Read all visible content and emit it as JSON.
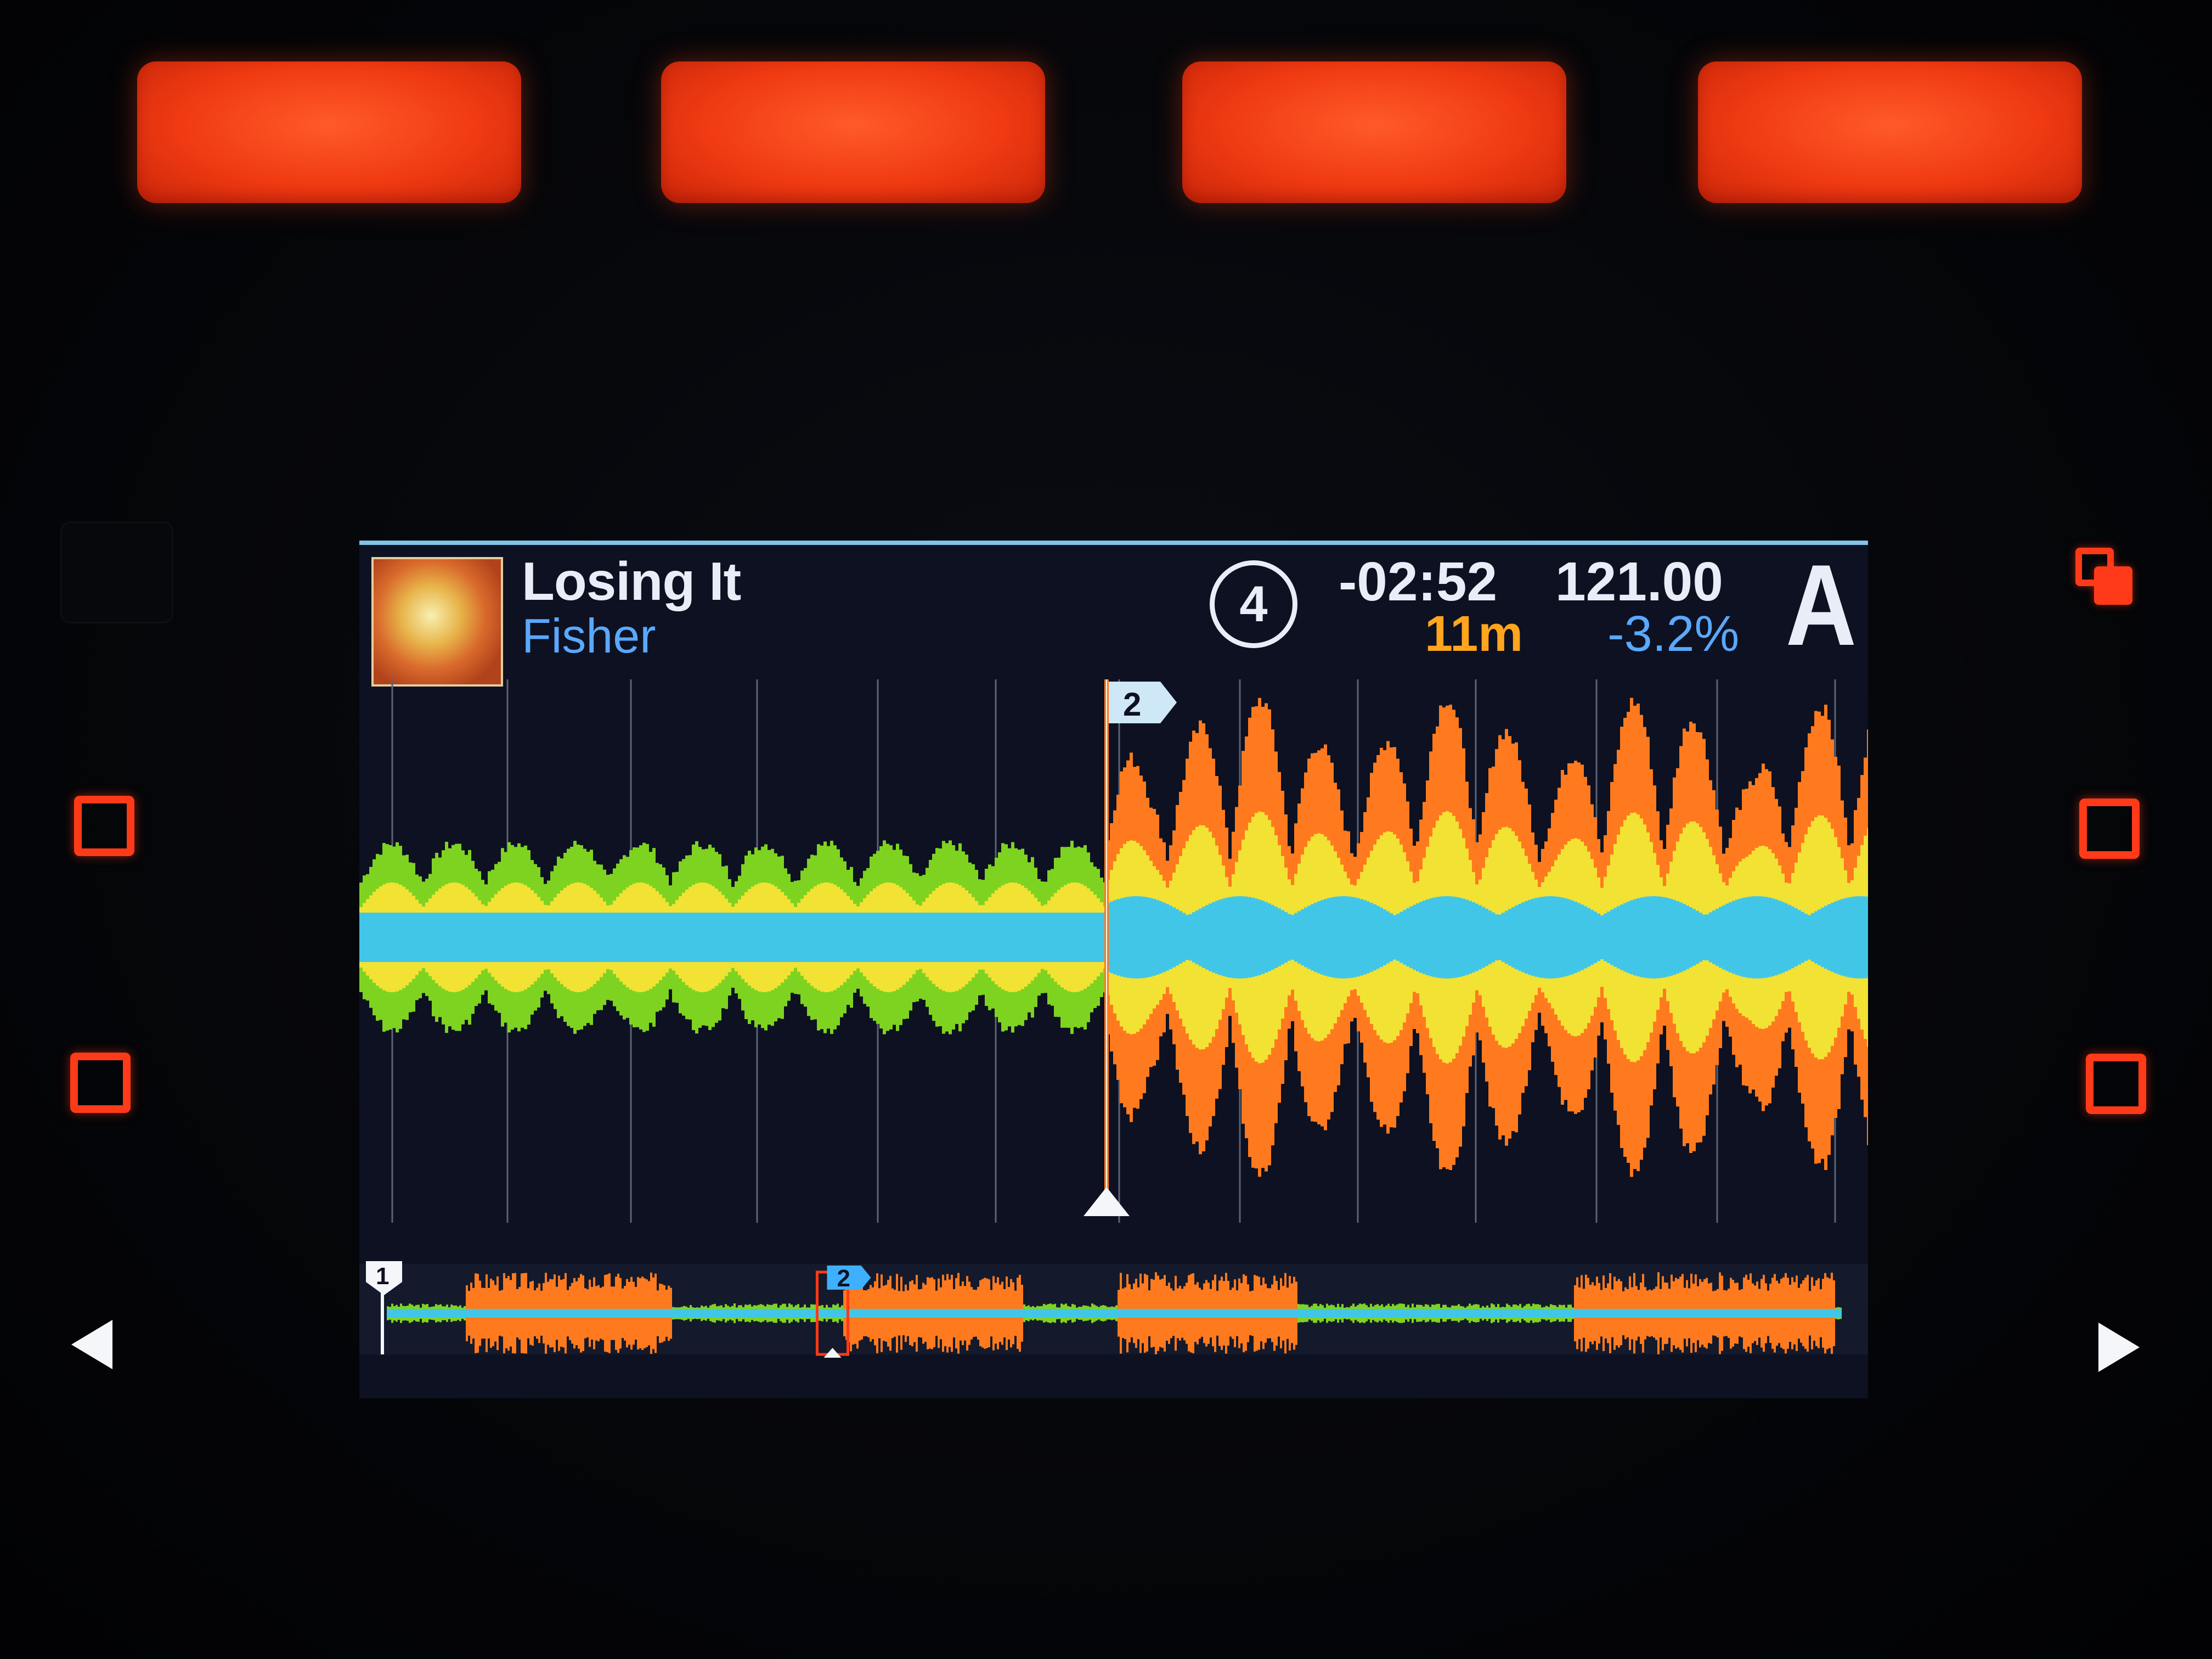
{
  "track": {
    "title": "Losing It",
    "artist": "Fisher",
    "remaining_time": "-02:52",
    "bpm": "121.00",
    "key": "11m",
    "tempo_adjust": "-3.2%",
    "beat_counter": "4",
    "deck": "A"
  },
  "cues": {
    "main_visible_cue": "2",
    "overview_cues": [
      "1",
      "2"
    ]
  },
  "playback": {
    "overview_position_fraction": 0.31
  },
  "colors": {
    "pad": "#f03a12",
    "button_outline": "#ff3a18",
    "screen_bg": "#0d1121",
    "text_primary": "#e8eef8",
    "text_blue": "#5aa8ff",
    "key_orange": "#ffa51e",
    "wave_low": "#42c6e8",
    "wave_mid": "#f2e234",
    "wave_high": "#ff7a1e",
    "wave_green": "#7ed321"
  },
  "icons": {
    "left_nav": "triangle-left-icon",
    "right_nav": "triangle-right-icon",
    "layer": "layer-icon"
  }
}
